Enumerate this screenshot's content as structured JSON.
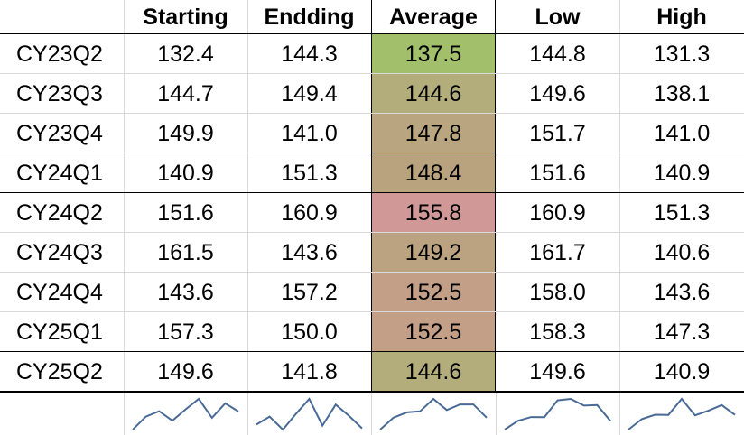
{
  "headers": [
    "",
    "Starting",
    "Endding",
    "Average",
    "Low",
    "High"
  ],
  "rows": [
    {
      "period": "CY23Q2",
      "starting": "132.4",
      "ending": "144.3",
      "average": "137.5",
      "low": "144.8",
      "high": "131.3",
      "avg_color": "#a2c06c"
    },
    {
      "period": "CY23Q3",
      "starting": "144.7",
      "ending": "149.4",
      "average": "144.6",
      "low": "149.6",
      "high": "138.1",
      "avg_color": "#b3ad7b"
    },
    {
      "period": "CY23Q4",
      "starting": "149.9",
      "ending": "141.0",
      "average": "147.8",
      "low": "151.7",
      "high": "141.0",
      "avg_color": "#b9a57f"
    },
    {
      "period": "CY24Q1",
      "starting": "140.9",
      "ending": "151.3",
      "average": "148.4",
      "low": "151.6",
      "high": "140.9",
      "avg_color": "#b9a37f"
    },
    {
      "period": "CY24Q2",
      "starting": "151.6",
      "ending": "160.9",
      "average": "155.8",
      "low": "160.9",
      "high": "151.3",
      "avg_color": "#d09896"
    },
    {
      "period": "CY24Q3",
      "starting": "161.5",
      "ending": "143.6",
      "average": "149.2",
      "low": "161.7",
      "high": "140.6",
      "avg_color": "#bba381"
    },
    {
      "period": "CY24Q4",
      "starting": "143.6",
      "ending": "157.2",
      "average": "152.5",
      "low": "158.0",
      "high": "143.6",
      "avg_color": "#c39f88"
    },
    {
      "period": "CY25Q1",
      "starting": "157.3",
      "ending": "150.0",
      "average": "152.5",
      "low": "158.3",
      "high": "147.3",
      "avg_color": "#c39f88"
    },
    {
      "period": "CY25Q2",
      "starting": "149.6",
      "ending": "141.8",
      "average": "144.6",
      "low": "149.6",
      "high": "140.9",
      "avg_color": "#b3ad7b"
    }
  ],
  "sparkline_color": "#4a6a96"
}
